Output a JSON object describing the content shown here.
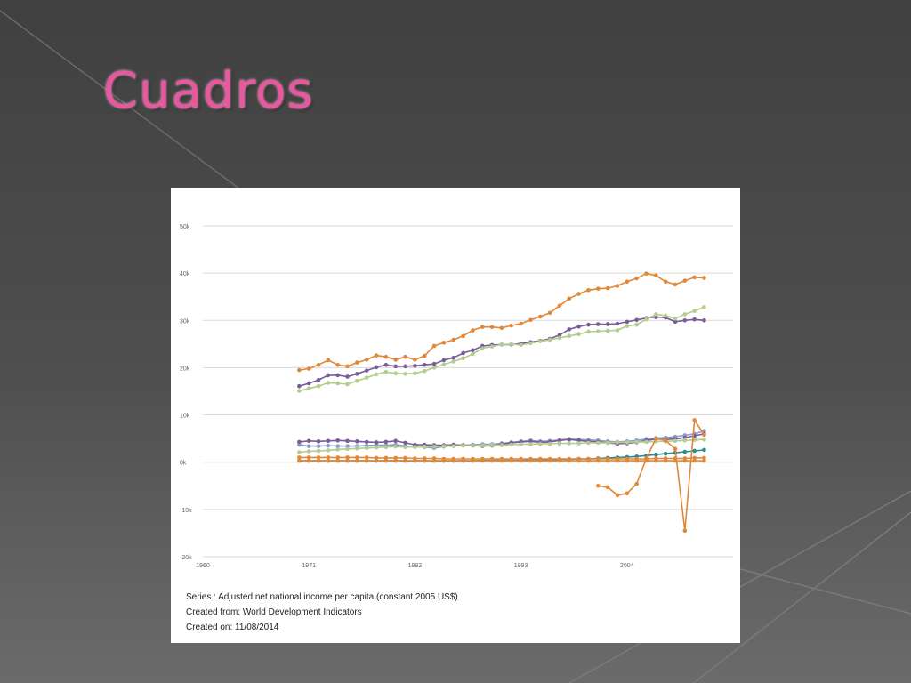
{
  "slide": {
    "title": "Cuadros",
    "colors": {
      "background": "#4a4a4a",
      "title": "#e8589e",
      "panel": "#ffffff"
    }
  },
  "chart_data": {
    "type": "line",
    "title": "",
    "xlabel": "",
    "ylabel": "",
    "x_ticks": [
      1960,
      1971,
      1982,
      1993,
      2004
    ],
    "xlim": [
      1960,
      2015
    ],
    "y_ticks": [
      {
        "value": 50000,
        "label": "50k"
      },
      {
        "value": 40000,
        "label": "40k"
      },
      {
        "value": 30000,
        "label": "30k"
      },
      {
        "value": 20000,
        "label": "20k"
      },
      {
        "value": 10000,
        "label": "10k"
      },
      {
        "value": 0,
        "label": "0k"
      },
      {
        "value": -10000,
        "label": "-10k"
      },
      {
        "value": -20000,
        "label": "-20k"
      }
    ],
    "ylim": [
      -20000,
      50000
    ],
    "grid": "horizontal",
    "legend": "none",
    "series": [
      {
        "color": "#e0883a",
        "x": [
          1970,
          1971,
          1972,
          1973,
          1974,
          1975,
          1976,
          1977,
          1978,
          1979,
          1980,
          1981,
          1982,
          1983,
          1984,
          1985,
          1986,
          1987,
          1988,
          1989,
          1990,
          1991,
          1992,
          1993,
          1994,
          1995,
          1996,
          1997,
          1998,
          1999,
          2000,
          2001,
          2002,
          2003,
          2004,
          2005,
          2006,
          2007,
          2008,
          2009,
          2010,
          2011,
          2012
        ],
        "values": [
          19500,
          19800,
          20600,
          21600,
          20600,
          20300,
          21100,
          21700,
          22600,
          22300,
          21700,
          22300,
          21700,
          22500,
          24600,
          25300,
          25900,
          26700,
          27900,
          28600,
          28600,
          28400,
          28900,
          29300,
          30100,
          30800,
          31600,
          33100,
          34600,
          35600,
          36400,
          36700,
          36800,
          37300,
          38200,
          38900,
          39900,
          39500,
          38200,
          37600,
          38400,
          39100,
          39000
        ]
      },
      {
        "color": "#7b5b9a",
        "x": [
          1970,
          1971,
          1972,
          1973,
          1974,
          1975,
          1976,
          1977,
          1978,
          1979,
          1980,
          1981,
          1982,
          1983,
          1984,
          1985,
          1986,
          1987,
          1988,
          1989,
          1990,
          1991,
          1992,
          1993,
          1994,
          1995,
          1996,
          1997,
          1998,
          1999,
          2000,
          2001,
          2002,
          2003,
          2004,
          2005,
          2006,
          2007,
          2008,
          2009,
          2010,
          2011,
          2012
        ],
        "values": [
          16100,
          16700,
          17400,
          18400,
          18400,
          18100,
          18700,
          19400,
          20100,
          20600,
          20300,
          20300,
          20400,
          20600,
          20800,
          21600,
          22100,
          23100,
          23700,
          24600,
          24800,
          24900,
          24900,
          25100,
          25400,
          25700,
          26100,
          26900,
          28100,
          28700,
          29100,
          29200,
          29200,
          29300,
          29700,
          30100,
          30500,
          30700,
          30600,
          29700,
          30000,
          30200,
          30000
        ]
      },
      {
        "color": "#b4cc8e",
        "x": [
          1970,
          1971,
          1972,
          1973,
          1974,
          1975,
          1976,
          1977,
          1978,
          1979,
          1980,
          1981,
          1982,
          1983,
          1984,
          1985,
          1986,
          1987,
          1988,
          1989,
          1990,
          1991,
          1992,
          1993,
          1994,
          1995,
          1996,
          1997,
          1998,
          1999,
          2000,
          2001,
          2002,
          2003,
          2004,
          2005,
          2006,
          2007,
          2008,
          2009,
          2010,
          2011,
          2012
        ],
        "values": [
          15100,
          15600,
          16100,
          16800,
          16700,
          16500,
          17200,
          17900,
          18600,
          19100,
          18800,
          18700,
          18800,
          19300,
          20000,
          20700,
          21300,
          22000,
          22900,
          24100,
          24500,
          24900,
          25000,
          24800,
          25200,
          25600,
          25900,
          26300,
          26700,
          27100,
          27600,
          27700,
          27800,
          27900,
          28800,
          29100,
          30200,
          31300,
          31000,
          30400,
          31300,
          32000,
          32800
        ]
      },
      {
        "color": "#8a9ec9",
        "x": [
          1970,
          1971,
          1972,
          1973,
          1974,
          1975,
          1976,
          1977,
          1978,
          1979,
          1980,
          1981,
          1982,
          1983,
          1984,
          1985,
          1986,
          1987,
          1988,
          1989,
          1990,
          1991,
          1992,
          1993,
          1994,
          1995,
          1996,
          1997,
          1998,
          1999,
          2000,
          2001,
          2002,
          2003,
          2004,
          2005,
          2006,
          2007,
          2008,
          2009,
          2010,
          2011,
          2012
        ],
        "values": [
          3700,
          3400,
          3400,
          3500,
          3400,
          3400,
          3400,
          3500,
          3600,
          3600,
          3700,
          3400,
          3300,
          3200,
          3000,
          3300,
          3500,
          3600,
          3700,
          3800,
          3800,
          4000,
          4200,
          4400,
          4600,
          4400,
          4500,
          4700,
          4900,
          4800,
          4700,
          4600,
          4400,
          4300,
          4400,
          4600,
          4900,
          5100,
          5200,
          5400,
          5700,
          6000,
          6600
        ]
      },
      {
        "color": "#7b5b9a",
        "x": [
          1970,
          1971,
          1972,
          1973,
          1974,
          1975,
          1976,
          1977,
          1978,
          1979,
          1980,
          1981,
          1982,
          1983,
          1984,
          1985,
          1986,
          1987,
          1988,
          1989,
          1990,
          1991,
          1992,
          1993,
          1994,
          1995,
          1996,
          1997,
          1998,
          1999,
          2000,
          2001,
          2002,
          2003,
          2004,
          2005,
          2006,
          2007,
          2008,
          2009,
          2010,
          2011,
          2012
        ],
        "values": [
          4300,
          4500,
          4400,
          4500,
          4600,
          4500,
          4400,
          4300,
          4200,
          4300,
          4500,
          4100,
          3700,
          3700,
          3600,
          3600,
          3700,
          3600,
          3500,
          3400,
          3500,
          3800,
          4100,
          4300,
          4400,
          4200,
          4300,
          4600,
          4800,
          4600,
          4400,
          4300,
          4100,
          3900,
          4000,
          4200,
          4600,
          4900,
          4800,
          4900,
          5200,
          5600,
          6000
        ]
      },
      {
        "color": "#b4cc8e",
        "x": [
          1970,
          1971,
          1972,
          1973,
          1974,
          1975,
          1976,
          1977,
          1978,
          1979,
          1980,
          1981,
          1982,
          1983,
          1984,
          1985,
          1986,
          1987,
          1988,
          1989,
          1990,
          1991,
          1992,
          1993,
          1994,
          1995,
          1996,
          1997,
          1998,
          1999,
          2000,
          2001,
          2002,
          2003,
          2004,
          2005,
          2006,
          2007,
          2008,
          2009,
          2010,
          2011,
          2012
        ],
        "values": [
          2100,
          2300,
          2400,
          2500,
          2700,
          2800,
          2900,
          3000,
          3100,
          3200,
          3300,
          3200,
          3200,
          3300,
          3300,
          3400,
          3400,
          3500,
          3500,
          3500,
          3600,
          3600,
          3700,
          3800,
          3800,
          3900,
          3900,
          4000,
          4000,
          4000,
          4100,
          4100,
          4100,
          4200,
          4200,
          4300,
          4300,
          4400,
          4400,
          4500,
          4600,
          4700,
          4800
        ]
      },
      {
        "color": "#2e8b96",
        "x": [
          1970,
          1971,
          1972,
          1973,
          1974,
          1975,
          1976,
          1977,
          1978,
          1979,
          1980,
          1981,
          1982,
          1983,
          1984,
          1985,
          1986,
          1987,
          1988,
          1989,
          1990,
          1991,
          1992,
          1993,
          1994,
          1995,
          1996,
          1997,
          1998,
          1999,
          2000,
          2001,
          2002,
          2003,
          2004,
          2005,
          2006,
          2007,
          2008,
          2009,
          2010,
          2011,
          2012
        ],
        "values": [
          300,
          300,
          300,
          300,
          300,
          300,
          300,
          300,
          300,
          300,
          300,
          300,
          300,
          300,
          300,
          300,
          300,
          300,
          300,
          400,
          400,
          400,
          400,
          400,
          500,
          500,
          500,
          600,
          600,
          700,
          700,
          800,
          900,
          1000,
          1100,
          1200,
          1400,
          1600,
          1800,
          2000,
          2200,
          2400,
          2600
        ]
      },
      {
        "color": "#e0883a",
        "x": [
          1970,
          1971,
          1972,
          1973,
          1974,
          1975,
          1976,
          1977,
          1978,
          1979,
          1980,
          1981,
          1982,
          1983,
          1984,
          1985,
          1986,
          1987,
          1988,
          1989,
          1990,
          1991,
          1992,
          1993,
          1994,
          1995,
          1996,
          1997,
          1998,
          1999,
          2000,
          2001,
          2002,
          2003,
          2004,
          2005,
          2006,
          2007,
          2008,
          2009,
          2010,
          2011,
          2012
        ],
        "values": [
          1000,
          1000,
          1000,
          1000,
          1000,
          1000,
          1000,
          1000,
          900,
          900,
          900,
          900,
          800,
          800,
          800,
          700,
          700,
          700,
          700,
          700,
          700,
          700,
          700,
          700,
          700,
          700,
          700,
          700,
          700,
          700,
          700,
          700,
          700,
          700,
          700,
          700,
          700,
          800,
          800,
          800,
          800,
          900,
          900
        ]
      },
      {
        "color": "#e0883a",
        "x": [
          1970,
          1971,
          1972,
          1973,
          1974,
          1975,
          1976,
          1977,
          1978,
          1979,
          1980,
          1981,
          1982,
          1983,
          1984,
          1985,
          1986,
          1987,
          1988,
          1989,
          1990,
          1991,
          1992,
          1993,
          1994,
          1995,
          1996,
          1997,
          1998,
          1999,
          2000,
          2001,
          2002,
          2003,
          2004,
          2005,
          2006,
          2007,
          2008,
          2009,
          2010,
          2011,
          2012
        ],
        "values": [
          300,
          300,
          300,
          300,
          300,
          300,
          300,
          300,
          300,
          300,
          300,
          300,
          300,
          300,
          300,
          300,
          300,
          300,
          300,
          300,
          300,
          300,
          300,
          300,
          300,
          300,
          300,
          300,
          300,
          300,
          300,
          300,
          300,
          300,
          300,
          300,
          300,
          300,
          300,
          300,
          300,
          300,
          300
        ]
      },
      {
        "color": "#e0883a",
        "x": [
          2001,
          2002,
          2003,
          2004,
          2005,
          2006,
          2007,
          2008,
          2009,
          2010,
          2011,
          2012
        ],
        "values": [
          -5000,
          -5300,
          -7000,
          -6600,
          -4600,
          800,
          5000,
          4600,
          2800,
          -14500,
          8900,
          5800
        ]
      }
    ]
  },
  "footer": {
    "series": "Series : Adjusted net national income per capita (constant 2005 US$)",
    "source": "Created from: World Development Indicators",
    "date": "Created on: 11/08/2014"
  }
}
